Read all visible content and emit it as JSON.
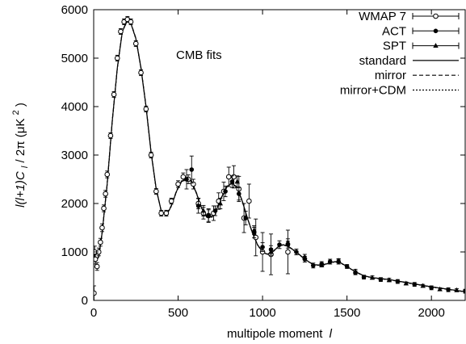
{
  "chart_data": {
    "type": "line",
    "annotation": "CMB fits",
    "xlabel": "multipole moment",
    "xlabel_symbol": "l",
    "ylabel": "l(l+1)C",
    "ylabel_sub": "l",
    "ylabel_tail": "/ 2π  (μK",
    "ylabel_sup": "2",
    "ylabel_close": ")",
    "xlim": [
      0,
      2200
    ],
    "ylim": [
      0,
      6000
    ],
    "x_ticks": [
      0,
      500,
      1000,
      1500,
      2000
    ],
    "y_ticks": [
      0,
      1000,
      2000,
      3000,
      4000,
      5000,
      6000
    ],
    "legend_position": "top-right",
    "grid": false,
    "series": [
      {
        "name": "WMAP 7",
        "kind": "errorbar",
        "marker": "open-circle",
        "points": [
          [
            2,
            150,
            150
          ],
          [
            6,
            1000,
            120
          ],
          [
            10,
            850,
            100
          ],
          [
            20,
            700,
            80
          ],
          [
            30,
            1000,
            80
          ],
          [
            40,
            1200,
            80
          ],
          [
            50,
            1500,
            80
          ],
          [
            60,
            1900,
            70
          ],
          [
            70,
            2200,
            70
          ],
          [
            80,
            2600,
            70
          ],
          [
            100,
            3400,
            60
          ],
          [
            120,
            4250,
            60
          ],
          [
            140,
            5000,
            60
          ],
          [
            160,
            5550,
            60
          ],
          [
            180,
            5750,
            60
          ],
          [
            200,
            5800,
            60
          ],
          [
            220,
            5750,
            60
          ],
          [
            250,
            5300,
            60
          ],
          [
            280,
            4700,
            60
          ],
          [
            310,
            3950,
            60
          ],
          [
            340,
            3000,
            60
          ],
          [
            370,
            2250,
            60
          ],
          [
            400,
            1800,
            60
          ],
          [
            430,
            1800,
            60
          ],
          [
            460,
            2050,
            60
          ],
          [
            500,
            2400,
            70
          ],
          [
            530,
            2550,
            80
          ],
          [
            560,
            2500,
            90
          ],
          [
            590,
            2400,
            100
          ],
          [
            620,
            2000,
            110
          ],
          [
            650,
            1800,
            120
          ],
          [
            680,
            1750,
            140
          ],
          [
            710,
            1800,
            150
          ],
          [
            740,
            2050,
            170
          ],
          [
            770,
            2250,
            190
          ],
          [
            800,
            2550,
            200
          ],
          [
            830,
            2550,
            230
          ],
          [
            860,
            2300,
            260
          ],
          [
            890,
            1700,
            300
          ],
          [
            920,
            2050,
            350
          ],
          [
            960,
            1300,
            380
          ],
          [
            1000,
            1000,
            400
          ],
          [
            1050,
            950,
            420
          ],
          [
            1150,
            1000,
            450
          ]
        ]
      },
      {
        "name": "ACT",
        "kind": "errorbar",
        "marker": "filled-circle",
        "points": [
          [
            550,
            2500,
            200
          ],
          [
            580,
            2700,
            280
          ],
          [
            620,
            1950,
            150
          ],
          [
            680,
            1750,
            120
          ],
          [
            720,
            1850,
            100
          ],
          [
            780,
            2250,
            110
          ],
          [
            820,
            2450,
            120
          ],
          [
            860,
            2200,
            130
          ],
          [
            900,
            1700,
            140
          ],
          [
            950,
            1400,
            110
          ],
          [
            1000,
            1100,
            90
          ],
          [
            1050,
            1050,
            80
          ],
          [
            1100,
            1150,
            80
          ],
          [
            1150,
            1150,
            70
          ],
          [
            1200,
            1000,
            60
          ],
          [
            1250,
            850,
            60
          ],
          [
            1300,
            720,
            50
          ],
          [
            1350,
            750,
            50
          ],
          [
            1400,
            800,
            50
          ],
          [
            1450,
            800,
            50
          ],
          [
            1500,
            700,
            40
          ],
          [
            1550,
            570,
            40
          ],
          [
            1600,
            480,
            40
          ],
          [
            1700,
            430,
            40
          ],
          [
            1800,
            390,
            40
          ],
          [
            1900,
            330,
            40
          ],
          [
            2000,
            260,
            40
          ],
          [
            2100,
            220,
            40
          ],
          [
            2200,
            190,
            40
          ]
        ]
      },
      {
        "name": "SPT",
        "kind": "errorbar",
        "marker": "filled-triangle",
        "points": [
          [
            650,
            1850,
            110
          ],
          [
            750,
            2000,
            110
          ],
          [
            850,
            2450,
            120
          ],
          [
            950,
            1450,
            90
          ],
          [
            1050,
            1000,
            70
          ],
          [
            1150,
            1200,
            70
          ],
          [
            1250,
            900,
            50
          ],
          [
            1350,
            730,
            40
          ],
          [
            1450,
            820,
            40
          ],
          [
            1550,
            600,
            40
          ],
          [
            1650,
            470,
            35
          ],
          [
            1750,
            420,
            35
          ],
          [
            1850,
            350,
            30
          ],
          [
            1950,
            300,
            30
          ],
          [
            2050,
            230,
            30
          ],
          [
            2150,
            210,
            30
          ]
        ]
      },
      {
        "name": "standard",
        "kind": "line",
        "dash": "solid",
        "points": [
          [
            2,
            1000
          ],
          [
            10,
            800
          ],
          [
            30,
            900
          ],
          [
            50,
            1400
          ],
          [
            80,
            2400
          ],
          [
            110,
            3700
          ],
          [
            140,
            4800
          ],
          [
            170,
            5550
          ],
          [
            200,
            5780
          ],
          [
            220,
            5720
          ],
          [
            250,
            5400
          ],
          [
            280,
            4800
          ],
          [
            310,
            4000
          ],
          [
            340,
            3050
          ],
          [
            370,
            2300
          ],
          [
            400,
            1850
          ],
          [
            430,
            1750
          ],
          [
            460,
            1950
          ],
          [
            490,
            2250
          ],
          [
            520,
            2450
          ],
          [
            550,
            2520
          ],
          [
            580,
            2450
          ],
          [
            610,
            2200
          ],
          [
            640,
            1900
          ],
          [
            670,
            1720
          ],
          [
            700,
            1720
          ],
          [
            730,
            1900
          ],
          [
            760,
            2150
          ],
          [
            790,
            2350
          ],
          [
            820,
            2420
          ],
          [
            850,
            2320
          ],
          [
            880,
            2050
          ],
          [
            910,
            1700
          ],
          [
            940,
            1400
          ],
          [
            970,
            1150
          ],
          [
            1000,
            1000
          ],
          [
            1030,
            950
          ],
          [
            1060,
            1000
          ],
          [
            1090,
            1100
          ],
          [
            1120,
            1150
          ],
          [
            1150,
            1120
          ],
          [
            1200,
            1000
          ],
          [
            1250,
            850
          ],
          [
            1300,
            740
          ],
          [
            1350,
            720
          ],
          [
            1400,
            780
          ],
          [
            1430,
            800
          ],
          [
            1460,
            780
          ],
          [
            1500,
            700
          ],
          [
            1550,
            590
          ],
          [
            1600,
            510
          ],
          [
            1650,
            470
          ],
          [
            1700,
            450
          ],
          [
            1750,
            430
          ],
          [
            1800,
            400
          ],
          [
            1900,
            340
          ],
          [
            2000,
            280
          ],
          [
            2100,
            230
          ],
          [
            2200,
            180
          ]
        ]
      },
      {
        "name": "mirror",
        "kind": "line",
        "dash": "dashed",
        "points": [
          [
            2,
            1000
          ],
          [
            10,
            800
          ],
          [
            30,
            900
          ],
          [
            50,
            1400
          ],
          [
            80,
            2400
          ],
          [
            110,
            3700
          ],
          [
            140,
            4800
          ],
          [
            170,
            5560
          ],
          [
            200,
            5790
          ],
          [
            220,
            5730
          ],
          [
            250,
            5410
          ],
          [
            280,
            4810
          ],
          [
            310,
            4010
          ],
          [
            340,
            3060
          ],
          [
            370,
            2300
          ],
          [
            400,
            1850
          ],
          [
            430,
            1760
          ],
          [
            460,
            1960
          ],
          [
            490,
            2260
          ],
          [
            520,
            2460
          ],
          [
            550,
            2530
          ],
          [
            580,
            2460
          ],
          [
            610,
            2210
          ],
          [
            640,
            1900
          ],
          [
            670,
            1720
          ],
          [
            700,
            1730
          ],
          [
            730,
            1910
          ],
          [
            760,
            2160
          ],
          [
            790,
            2360
          ],
          [
            820,
            2430
          ],
          [
            850,
            2330
          ],
          [
            880,
            2050
          ],
          [
            910,
            1700
          ],
          [
            940,
            1400
          ],
          [
            970,
            1150
          ],
          [
            1000,
            1000
          ],
          [
            1030,
            955
          ],
          [
            1060,
            1005
          ],
          [
            1090,
            1100
          ],
          [
            1120,
            1150
          ],
          [
            1150,
            1120
          ],
          [
            1200,
            1000
          ],
          [
            1250,
            850
          ],
          [
            1300,
            740
          ],
          [
            1350,
            725
          ],
          [
            1400,
            785
          ],
          [
            1430,
            800
          ],
          [
            1460,
            780
          ],
          [
            1500,
            700
          ],
          [
            1550,
            590
          ],
          [
            1600,
            510
          ],
          [
            1650,
            470
          ],
          [
            1700,
            450
          ],
          [
            1750,
            430
          ],
          [
            1800,
            400
          ],
          [
            1900,
            340
          ],
          [
            2000,
            280
          ],
          [
            2100,
            230
          ],
          [
            2200,
            180
          ]
        ]
      },
      {
        "name": "mirror+CDM",
        "kind": "line",
        "dash": "dotted",
        "points": [
          [
            2,
            1000
          ],
          [
            10,
            800
          ],
          [
            30,
            900
          ],
          [
            50,
            1400
          ],
          [
            80,
            2400
          ],
          [
            110,
            3700
          ],
          [
            140,
            4800
          ],
          [
            170,
            5550
          ],
          [
            200,
            5775
          ],
          [
            220,
            5715
          ],
          [
            250,
            5395
          ],
          [
            280,
            4795
          ],
          [
            310,
            3995
          ],
          [
            340,
            3045
          ],
          [
            370,
            2295
          ],
          [
            400,
            1845
          ],
          [
            430,
            1745
          ],
          [
            460,
            1945
          ],
          [
            490,
            2245
          ],
          [
            520,
            2445
          ],
          [
            550,
            2515
          ],
          [
            580,
            2445
          ],
          [
            610,
            2195
          ],
          [
            640,
            1895
          ],
          [
            670,
            1715
          ],
          [
            700,
            1715
          ],
          [
            730,
            1895
          ],
          [
            760,
            2145
          ],
          [
            790,
            2345
          ],
          [
            820,
            2415
          ],
          [
            850,
            2315
          ],
          [
            880,
            2045
          ],
          [
            910,
            1695
          ],
          [
            940,
            1395
          ],
          [
            970,
            1145
          ],
          [
            1000,
            995
          ],
          [
            1030,
            945
          ],
          [
            1060,
            995
          ],
          [
            1090,
            1095
          ],
          [
            1120,
            1145
          ],
          [
            1150,
            1115
          ],
          [
            1200,
            995
          ],
          [
            1250,
            845
          ],
          [
            1300,
            735
          ],
          [
            1350,
            715
          ],
          [
            1400,
            775
          ],
          [
            1430,
            795
          ],
          [
            1460,
            775
          ],
          [
            1500,
            695
          ],
          [
            1550,
            585
          ],
          [
            1600,
            505
          ],
          [
            1650,
            465
          ],
          [
            1700,
            445
          ],
          [
            1750,
            425
          ],
          [
            1800,
            395
          ],
          [
            1900,
            335
          ],
          [
            2000,
            275
          ],
          [
            2100,
            225
          ],
          [
            2200,
            175
          ]
        ]
      }
    ]
  }
}
